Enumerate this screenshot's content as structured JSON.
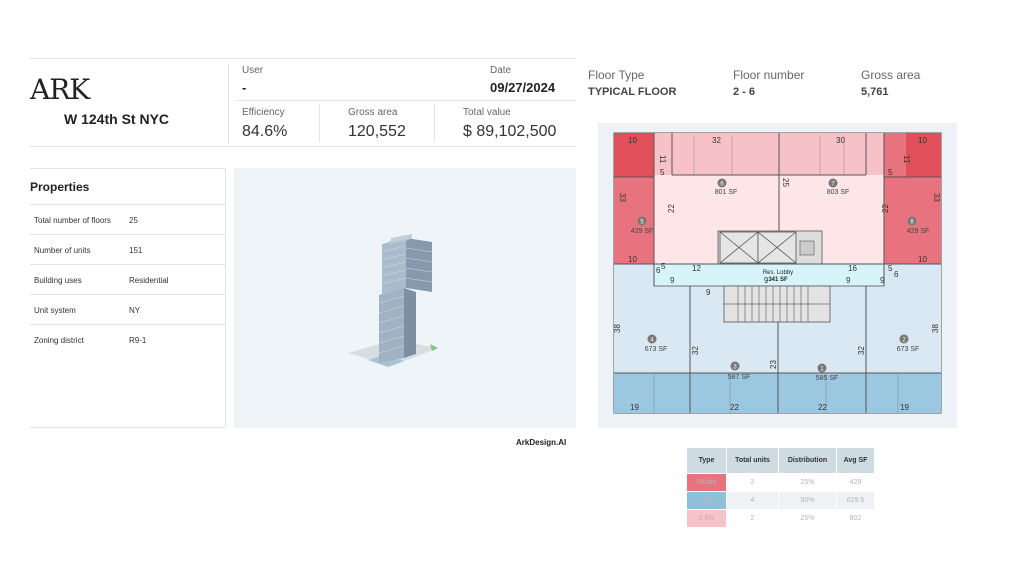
{
  "brand": {
    "logo": "ARK",
    "project": "W 124th St NYC",
    "footer": "ArkDesign.AI"
  },
  "summary": {
    "user_label": "User",
    "user_value": "-",
    "date_label": "Date",
    "date_value": "09/27/2024",
    "efficiency_label": "Efficiency",
    "efficiency_value": "84.6%",
    "gross_label": "Gross area",
    "gross_value": "120,552",
    "total_label": "Total value",
    "total_value": "$ 89,102,500"
  },
  "properties": {
    "title": "Properties",
    "rows": [
      {
        "label": "Total number of floors",
        "value": "25"
      },
      {
        "label": "Number of units",
        "value": "151"
      },
      {
        "label": "Building uses",
        "value": "Residential"
      },
      {
        "label": "Unit system",
        "value": "NY"
      },
      {
        "label": "Zoning district",
        "value": "R9-1"
      }
    ]
  },
  "floor": {
    "type_label": "Floor Type",
    "type_value": "TYPICAL FLOOR",
    "number_label": "Floor number",
    "number_value": "2 - 6",
    "gross_label": "Gross area",
    "gross_value": "5,761"
  },
  "plan": {
    "units": {
      "u5": {
        "num": "5",
        "sf": "429 SF"
      },
      "u6": {
        "num": "6",
        "sf": "801 SF"
      },
      "u7": {
        "num": "7",
        "sf": "803 SF"
      },
      "u8": {
        "num": "8",
        "sf": "429 SF"
      },
      "u4": {
        "num": "4",
        "sf": "673 SF"
      },
      "u3": {
        "num": "3",
        "sf": "587 SF"
      },
      "u1": {
        "num": "1",
        "sf": "585 SF"
      },
      "u2": {
        "num": "2",
        "sf": "673 SF"
      }
    },
    "lobby": {
      "name": "Res. Lobby",
      "sf": "341 SF"
    },
    "dims": {
      "d10a": "10",
      "d32": "32",
      "d30": "30",
      "d10b": "10",
      "d11a": "11",
      "d11b": "11",
      "d5a": "5",
      "d5b": "5",
      "d25": "25",
      "d33a": "33",
      "d33b": "33",
      "d22a": "22",
      "d22b": "22",
      "d10c": "10",
      "d10d": "10",
      "d6a": "6",
      "d6b": "6",
      "d5c": "5",
      "d5d": "5",
      "d12": "12",
      "d16": "16",
      "d9a": "9",
      "d9b": "9",
      "d9c": "9",
      "d9d": "9",
      "d9e": "9",
      "d38a": "38",
      "d38b": "38",
      "d32a": "32",
      "d32b": "32",
      "d23": "23",
      "d19a": "19",
      "d22c": "22",
      "d22d": "22",
      "d19b": "19"
    }
  },
  "unit_mix": {
    "headers": [
      "Type",
      "Total units",
      "Distribution",
      "Avg SF"
    ],
    "rows": [
      {
        "type": "Studio",
        "units": "2",
        "dist": "25%",
        "avg": "429",
        "color": "#e8737e"
      },
      {
        "type": "1 BR",
        "units": "4",
        "dist": "50%",
        "avg": "629.5",
        "color": "#8fc0da"
      },
      {
        "type": "2 BR",
        "units": "2",
        "dist": "25%",
        "avg": "802",
        "color": "#f7c3c8"
      }
    ]
  },
  "colors": {
    "studio": "#e8737e",
    "one_br": "#9cc7e0",
    "two_br": "#fde5e8",
    "lobby": "#d8f4fb",
    "accent_line": "#dde6e3"
  }
}
